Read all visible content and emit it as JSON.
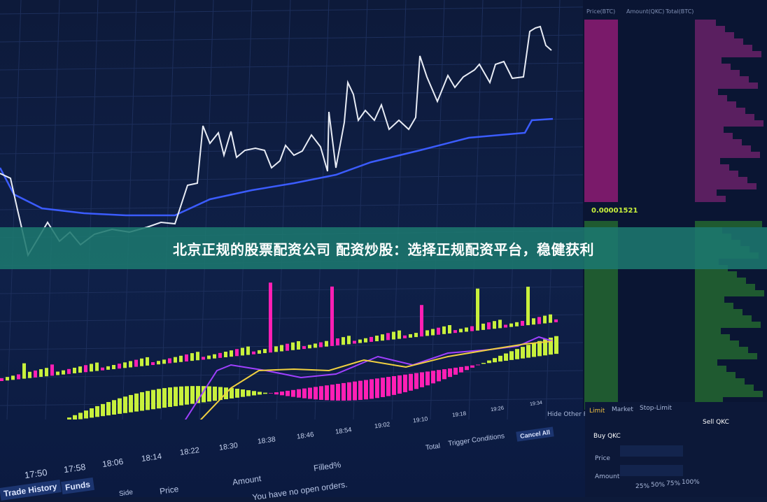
{
  "banner": {
    "title": "北京正规的股票配资公司 配资炒股：选择正规配资平台，稳健获利"
  },
  "chart": {
    "time_labels": [
      "17:50",
      "17:58",
      "18:06",
      "18:14",
      "18:22",
      "18:30",
      "18:38",
      "18:46",
      "18:54",
      "19:02",
      "19:10",
      "19:18",
      "19:26",
      "19:34"
    ],
    "colors": {
      "price_line": "#e8ecf5",
      "ma_line": "#3b5cff",
      "up_bar": "#c8f03c",
      "down_bar": "#ff1fb4",
      "macd_fast": "#a040ff",
      "macd_slow": "#f0d040",
      "background": "#0f2048"
    },
    "hide_other_pairs": "Hide Other Pairs"
  },
  "order_book": {
    "headers": [
      "Price(BTC)",
      "Amount(QKC)",
      "Total(BTC)"
    ],
    "last_price": "0.00001521"
  },
  "orders": {
    "tabs": [
      "Trade History",
      "Funds"
    ],
    "columns": [
      "Side",
      "Price",
      "Amount",
      "Filled%",
      "Total",
      "Trigger Conditions"
    ],
    "cancel_all": "Cancel All",
    "empty_message": "You have no open orders."
  },
  "trade_panel": {
    "tabs": [
      "Limit",
      "Market",
      "Stop-Limit"
    ],
    "buy_title": "Buy QKC",
    "sell_title": "Sell QKC",
    "price_label": "Price",
    "amount_label": "Amount",
    "percents": [
      "25%",
      "50%",
      "75%",
      "100%"
    ]
  }
}
